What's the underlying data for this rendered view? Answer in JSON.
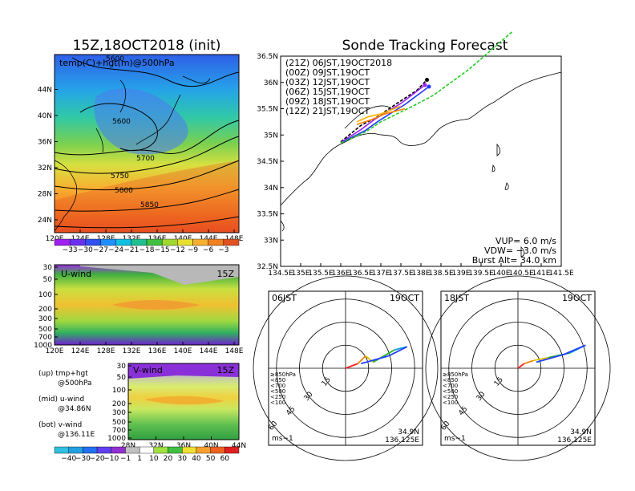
{
  "colors": {
    "series": {
      "21Z": "#000000",
      "00Z": "#a020f0",
      "03Z": "#1e3cff",
      "06Z": "#1ea01e",
      "09Z": "#ffb400",
      "12Z": "#ff8000"
    },
    "track_green": "#22cc22"
  },
  "left_top": {
    "title": "15Z,18OCT2018 (init)",
    "overlay_label": "temp(C)+hgt(m)@500hPa",
    "contours": [
      "5600",
      "5600",
      "5700",
      "5750",
      "5800",
      "5850"
    ],
    "colorbar_labels": [
      "−33",
      "−30",
      "−27",
      "−24",
      "−21",
      "−18",
      "−15",
      "−12",
      "−9",
      "−6",
      "−3"
    ]
  },
  "left_mid": {
    "label": "U-wind",
    "time": "15Z"
  },
  "left_bot": {
    "label": "V-wind",
    "time": "15Z"
  },
  "legend_notes": {
    "l1a": "(up) tmp+hgt",
    "l1b": "@500hPa",
    "l2a": "(mid) u-wind",
    "l2b": "@34.86N",
    "l3a": "(bot) v-wind",
    "l3b": "@136.11E"
  },
  "bottom_colorbar_labels": [
    "−40",
    "−30",
    "−20",
    "−10",
    "−1",
    "1",
    "10",
    "20",
    "30",
    "40",
    "50",
    "60"
  ],
  "track": {
    "title": "Sonde Tracking Forecast",
    "legend": [
      {
        "key": "21Z",
        "text": "(21Z) 06JST,19OCT2018"
      },
      {
        "key": "00Z",
        "text": "(00Z) 09JST,19OCT"
      },
      {
        "key": "03Z",
        "text": "(03Z) 12JST,19OCT"
      },
      {
        "key": "06Z",
        "text": "(06Z) 15JST,19OCT"
      },
      {
        "key": "09Z",
        "text": "(09Z) 18JST,19OCT"
      },
      {
        "key": "12Z",
        "text": "(12Z) 21JST,19OCT"
      }
    ],
    "info": {
      "vup": "VUP=  6.0  m/s",
      "vdw": "VDW= −3.0  m/s",
      "burst": "Burst Alt=  34.0  km"
    }
  },
  "hodo_left": {
    "time": "06JST",
    "date": "19OCT",
    "lat": "34.9N",
    "lon": "136.125E",
    "unit": "ms−1",
    "rings": [
      "15",
      "30",
      "45",
      "60"
    ]
  },
  "hodo_right": {
    "time": "18JST",
    "date": "19OCT",
    "lat": "34.9N",
    "lon": "136.125E",
    "unit": "ms−1",
    "rings": [
      "15",
      "30",
      "45",
      "60"
    ]
  },
  "hodo_legend": [
    {
      "text": "≥850hPa",
      "color": "#ff2020"
    },
    {
      "text": "<850",
      "color": "#ff8000"
    },
    {
      "text": "<700",
      "color": "#e0c000"
    },
    {
      "text": "<500",
      "color": "#20b020"
    },
    {
      "text": "<250",
      "color": "#10a0e0"
    },
    {
      "text": "<100",
      "color": "#2040ff"
    }
  ],
  "chart_data": [
    {
      "type": "heatmap",
      "title": "15Z,18OCT2018 (init)",
      "subtitle": "temp(C)+hgt(m)@500hPa",
      "x_ticks": [
        "120E",
        "124E",
        "128E",
        "132E",
        "136E",
        "140E",
        "144E",
        "148E"
      ],
      "y_ticks": [
        "24N",
        "28N",
        "32N",
        "36N",
        "40N",
        "44N"
      ],
      "xlim": [
        120,
        150
      ],
      "ylim": [
        22,
        48
      ],
      "contour_levels": [
        5600,
        5700,
        5750,
        5800,
        5850
      ],
      "colorbar": [
        -33,
        -30,
        -27,
        -24,
        -21,
        -18,
        -15,
        -12,
        -9,
        -6,
        -3
      ]
    },
    {
      "type": "heatmap",
      "title": "U-wind",
      "x_ticks": [
        "120E",
        "124E",
        "128E",
        "132E",
        "136E",
        "140E",
        "144E",
        "148E"
      ],
      "y_ticks": [
        "30",
        "50",
        "100",
        "200",
        "300",
        "500",
        "700",
        "1000"
      ],
      "section": "@34.86N"
    },
    {
      "type": "heatmap",
      "title": "V-wind",
      "x_ticks": [
        "28N",
        "32N",
        "36N",
        "40N",
        "44N"
      ],
      "y_ticks": [
        "30",
        "50",
        "100",
        "200",
        "300",
        "500",
        "700",
        "1000"
      ],
      "section": "@136.11E",
      "colorbar": [
        -40,
        -30,
        -20,
        -10,
        -1,
        1,
        10,
        20,
        30,
        40,
        50,
        60
      ]
    },
    {
      "type": "line",
      "title": "Sonde Tracking Forecast",
      "x_ticks": [
        "134.5E",
        "135E",
        "135.5E",
        "136E",
        "136.5E",
        "137E",
        "137.5E",
        "138E",
        "138.5E",
        "139E",
        "139.5E",
        "140E",
        "140.5E",
        "141E",
        "141.5E"
      ],
      "y_ticks": [
        "32.5N",
        "33N",
        "33.5N",
        "34N",
        "34.5N",
        "35N",
        "35.5N",
        "36N",
        "36.5N"
      ],
      "xlim": [
        134.5,
        141.5
      ],
      "ylim": [
        32.5,
        36.5
      ],
      "series": [
        {
          "name": "(21Z) 06JST,19OCT2018",
          "x": [
            136.0,
            136.5,
            136.9,
            137.4,
            137.9,
            138.15
          ],
          "y": [
            34.87,
            35.18,
            35.34,
            35.6,
            35.85,
            36.05
          ]
        },
        {
          "name": "(00Z) 09JST,19OCT",
          "x": [
            136.0,
            136.5,
            136.85,
            137.5,
            138.1
          ],
          "y": [
            34.86,
            35.1,
            35.3,
            35.6,
            35.95
          ]
        },
        {
          "name": "(03Z) 12JST,19OCT",
          "x": [
            136.0,
            136.6,
            136.95,
            137.6,
            138.2
          ],
          "y": [
            34.85,
            35.08,
            35.27,
            35.58,
            35.92
          ]
        },
        {
          "name": "(06Z) 15JST,19OCT",
          "x": [
            136.0,
            136.6,
            137.0,
            137.8,
            138.3,
            139.2,
            140.3
          ],
          "y": [
            34.85,
            35.05,
            35.25,
            35.55,
            35.75,
            36.25,
            36.98
          ]
        },
        {
          "name": "(09Z) 18JST,19OCT",
          "x": [
            136.4,
            136.7,
            137.0,
            137.5
          ],
          "y": [
            35.25,
            35.35,
            35.4,
            35.55
          ]
        },
        {
          "name": "(12Z) 21JST,19OCT",
          "x": [
            136.4,
            136.8,
            137.1,
            137.6
          ],
          "y": [
            35.2,
            35.3,
            35.4,
            35.5
          ]
        }
      ]
    },
    {
      "type": "line",
      "title": "06JST 19OCT hodograph",
      "rings": [
        15,
        30,
        45,
        60
      ],
      "points_uv": [
        [
          0,
          0
        ],
        [
          8,
          3
        ],
        [
          13,
          8
        ],
        [
          18,
          4
        ],
        [
          32,
          12
        ],
        [
          40,
          14
        ],
        [
          28,
          8
        ],
        [
          10,
          3
        ]
      ]
    },
    {
      "type": "line",
      "title": "18JST 19OCT hodograph",
      "rings": [
        15,
        30,
        45,
        60
      ],
      "points_uv": [
        [
          0,
          0
        ],
        [
          4,
          3
        ],
        [
          10,
          5
        ],
        [
          20,
          7
        ],
        [
          34,
          10
        ],
        [
          44,
          15
        ],
        [
          30,
          9
        ],
        [
          12,
          4
        ]
      ]
    }
  ]
}
